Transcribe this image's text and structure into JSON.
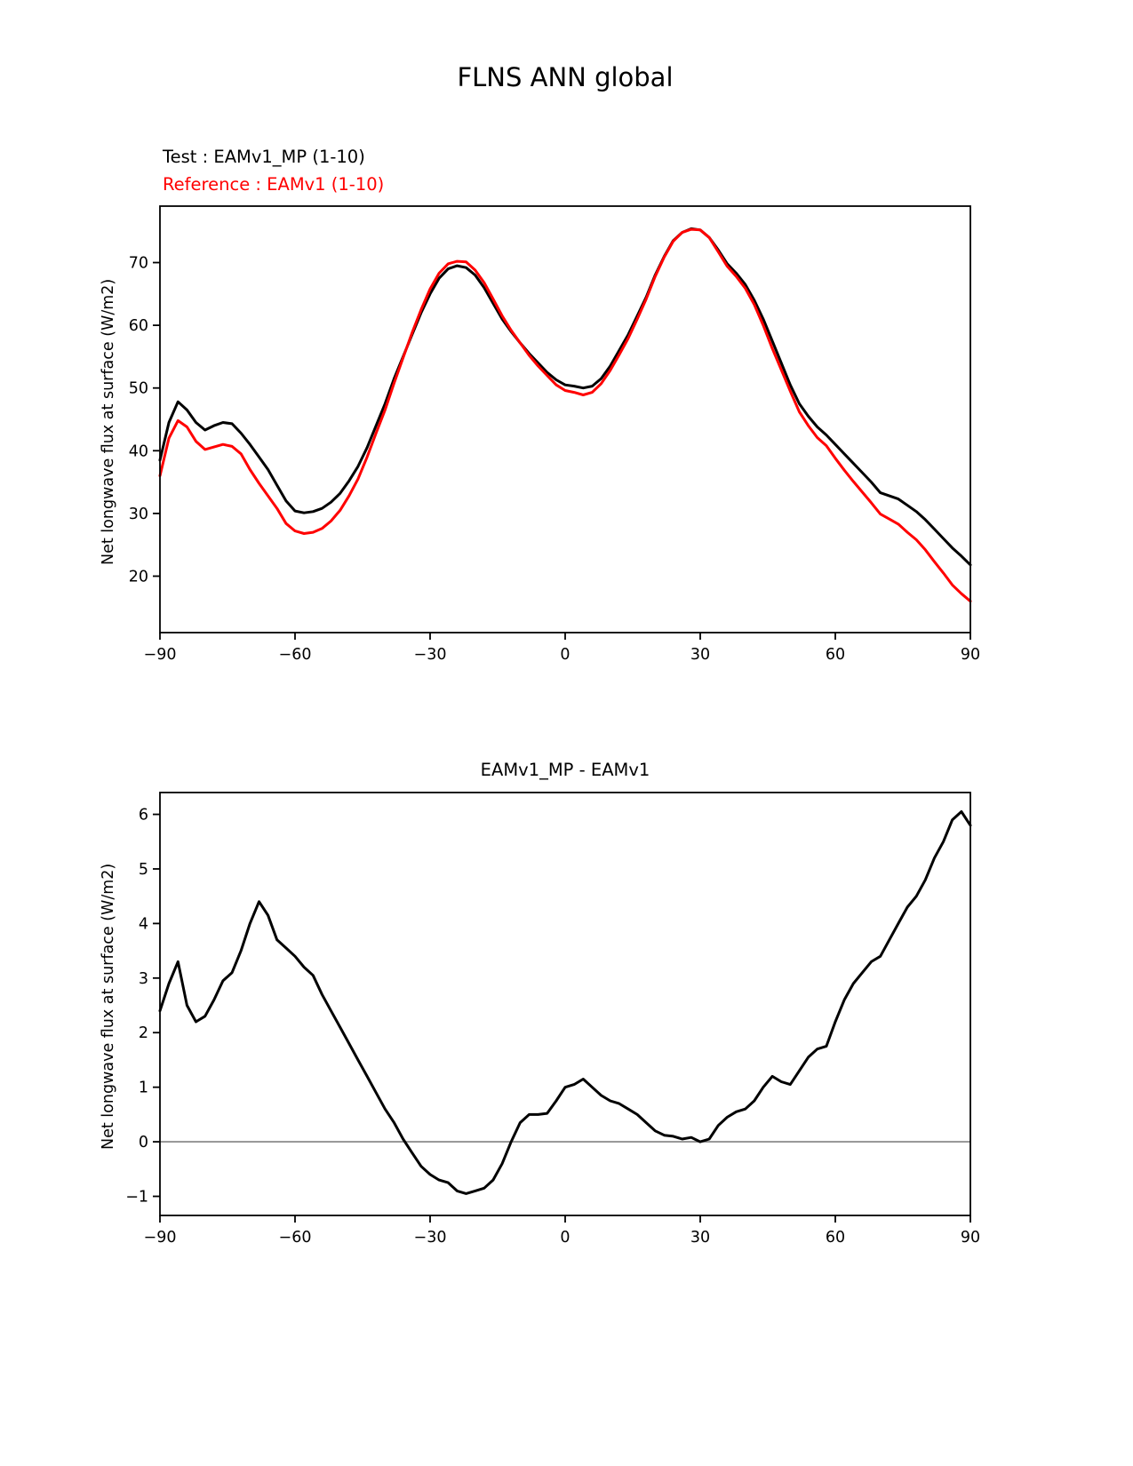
{
  "figure": {
    "title": "FLNS ANN global"
  },
  "chart_data": [
    {
      "type": "line",
      "title": "FLNS ANN global",
      "ylabel": "Net longwave flux at surface (W/m2)",
      "xlabel": "",
      "xlim": [
        -90,
        90
      ],
      "ylim": [
        11,
        79
      ],
      "xticks": [
        -90,
        -60,
        -30,
        0,
        30,
        60,
        90
      ],
      "yticks": [
        20,
        30,
        40,
        50,
        60,
        70
      ],
      "grid": false,
      "legend_position": "upper-left-outside",
      "legend": [
        {
          "label": "Test : EAMv1_MP (1-10)",
          "color": "#000000"
        },
        {
          "label": "Reference : EAMv1 (1-10)",
          "color": "#ff0000"
        }
      ],
      "x": [
        -90,
        -88,
        -86,
        -84,
        -82,
        -80,
        -78,
        -76,
        -74,
        -72,
        -70,
        -68,
        -66,
        -64,
        -62,
        -60,
        -58,
        -56,
        -54,
        -52,
        -50,
        -48,
        -46,
        -44,
        -42,
        -40,
        -38,
        -36,
        -34,
        -32,
        -30,
        -28,
        -26,
        -24,
        -22,
        -20,
        -18,
        -16,
        -14,
        -12,
        -10,
        -8,
        -6,
        -4,
        -2,
        0,
        2,
        4,
        6,
        8,
        10,
        12,
        14,
        16,
        18,
        20,
        22,
        24,
        26,
        28,
        30,
        32,
        34,
        36,
        38,
        40,
        42,
        44,
        46,
        48,
        50,
        52,
        54,
        56,
        58,
        60,
        62,
        64,
        66,
        68,
        70,
        72,
        74,
        76,
        78,
        80,
        82,
        84,
        86,
        88,
        90
      ],
      "series": [
        {
          "name": "Test : EAMv1_MP (1-10)",
          "color": "#000000",
          "values": [
            38.5,
            44.5,
            47.8,
            46.5,
            44.5,
            43.3,
            44.0,
            44.5,
            44.3,
            42.8,
            41.0,
            39.0,
            37.0,
            34.5,
            32.0,
            30.4,
            30.1,
            30.3,
            30.8,
            31.8,
            33.2,
            35.2,
            37.5,
            40.5,
            44.0,
            47.5,
            51.5,
            55.0,
            58.5,
            62.0,
            65.0,
            67.5,
            69.0,
            69.5,
            69.2,
            68.0,
            66.0,
            63.5,
            61.0,
            59.0,
            57.2,
            55.5,
            54.0,
            52.5,
            51.3,
            50.5,
            50.3,
            50.0,
            50.3,
            51.5,
            53.5,
            56.0,
            58.5,
            61.5,
            64.5,
            68.0,
            71.0,
            73.5,
            74.8,
            75.4,
            75.2,
            74.0,
            72.0,
            69.8,
            68.3,
            66.5,
            64.0,
            61.0,
            57.5,
            54.0,
            50.5,
            47.5,
            45.5,
            43.8,
            42.5,
            41.0,
            39.5,
            38.0,
            36.5,
            35.0,
            33.3,
            32.8,
            32.3,
            31.3,
            30.3,
            29.0,
            27.5,
            26.0,
            24.5,
            23.2,
            21.8
          ]
        },
        {
          "name": "Reference : EAMv1 (1-10)",
          "color": "#ff0000",
          "values": [
            36.0,
            42.0,
            44.8,
            43.8,
            41.5,
            40.2,
            40.6,
            41.0,
            40.7,
            39.5,
            37.0,
            34.8,
            32.8,
            30.8,
            28.4,
            27.2,
            26.8,
            27.0,
            27.6,
            28.8,
            30.5,
            32.8,
            35.5,
            39.0,
            42.8,
            46.5,
            50.8,
            54.8,
            58.8,
            62.5,
            65.8,
            68.3,
            69.8,
            70.2,
            70.1,
            68.8,
            66.8,
            64.2,
            61.5,
            59.2,
            57.2,
            55.2,
            53.5,
            52.0,
            50.5,
            49.6,
            49.3,
            48.9,
            49.3,
            50.7,
            52.8,
            55.3,
            57.9,
            61.0,
            64.2,
            67.8,
            70.9,
            73.4,
            74.8,
            75.3,
            75.2,
            74.0,
            71.7,
            69.4,
            67.8,
            65.9,
            63.3,
            60.0,
            56.3,
            52.9,
            49.5,
            46.2,
            44.0,
            42.1,
            40.8,
            38.8,
            36.9,
            35.1,
            33.4,
            31.7,
            29.9,
            29.1,
            28.3,
            27.0,
            25.8,
            24.2,
            22.3,
            20.5,
            18.6,
            17.2,
            16.0
          ]
        }
      ]
    },
    {
      "type": "line",
      "title": "EAMv1_MP - EAMv1",
      "ylabel": "Net longwave flux at surface (W/m2)",
      "xlabel": "",
      "xlim": [
        -90,
        90
      ],
      "ylim": [
        -1.35,
        6.4
      ],
      "xticks": [
        -90,
        -60,
        -30,
        0,
        30,
        60,
        90
      ],
      "yticks": [
        -1,
        0,
        1,
        2,
        3,
        4,
        5,
        6
      ],
      "grid": false,
      "zero_line": true,
      "zero_line_color": "#808080",
      "x": [
        -90,
        -88,
        -86,
        -84,
        -82,
        -80,
        -78,
        -76,
        -74,
        -72,
        -70,
        -68,
        -66,
        -64,
        -62,
        -60,
        -58,
        -56,
        -54,
        -52,
        -50,
        -48,
        -46,
        -44,
        -42,
        -40,
        -38,
        -36,
        -34,
        -32,
        -30,
        -28,
        -26,
        -24,
        -22,
        -20,
        -18,
        -16,
        -14,
        -12,
        -10,
        -8,
        -6,
        -4,
        -2,
        0,
        2,
        4,
        6,
        8,
        10,
        12,
        14,
        16,
        18,
        20,
        22,
        24,
        26,
        28,
        30,
        32,
        34,
        36,
        38,
        40,
        42,
        44,
        46,
        48,
        50,
        52,
        54,
        56,
        58,
        60,
        62,
        64,
        66,
        68,
        70,
        72,
        74,
        76,
        78,
        80,
        82,
        84,
        86,
        88,
        90
      ],
      "series": [
        {
          "name": "EAMv1_MP - EAMv1",
          "color": "#000000",
          "values": [
            2.4,
            2.9,
            3.3,
            2.5,
            2.2,
            2.3,
            2.6,
            2.95,
            3.1,
            3.5,
            4.0,
            4.4,
            4.15,
            3.7,
            3.55,
            3.4,
            3.2,
            3.05,
            2.7,
            2.4,
            2.1,
            1.8,
            1.5,
            1.2,
            0.9,
            0.6,
            0.35,
            0.05,
            -0.2,
            -0.45,
            -0.6,
            -0.7,
            -0.75,
            -0.9,
            -0.95,
            -0.9,
            -0.85,
            -0.7,
            -0.4,
            0.0,
            0.35,
            0.5,
            0.5,
            0.52,
            0.75,
            1.0,
            1.05,
            1.15,
            1.0,
            0.85,
            0.75,
            0.7,
            0.6,
            0.5,
            0.35,
            0.2,
            0.12,
            0.1,
            0.05,
            0.08,
            0.0,
            0.05,
            0.3,
            0.45,
            0.55,
            0.6,
            0.75,
            1.0,
            1.2,
            1.1,
            1.05,
            1.3,
            1.55,
            1.7,
            1.75,
            2.2,
            2.6,
            2.9,
            3.1,
            3.3,
            3.4,
            3.7,
            4.0,
            4.3,
            4.5,
            4.8,
            5.2,
            5.5,
            5.9,
            6.05,
            5.8
          ]
        }
      ]
    }
  ]
}
